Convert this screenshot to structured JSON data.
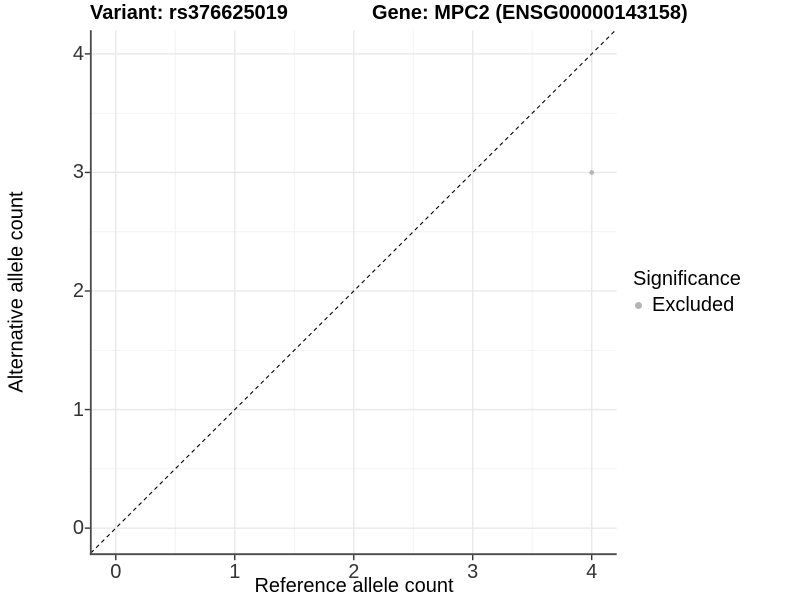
{
  "chart_data": {
    "type": "scatter",
    "title_variant": "Variant: rs376625019",
    "title_gene": "Gene: MPC2 (ENSG00000143158)",
    "xlabel": "Reference allele count",
    "ylabel": "Alternative allele count",
    "xlim": [
      -0.21,
      4.21
    ],
    "ylim": [
      -0.22,
      4.2
    ],
    "xticks": [
      0,
      1,
      2,
      3,
      4
    ],
    "yticks": [
      0,
      1,
      2,
      3,
      4
    ],
    "points": [
      {
        "x": 4,
        "y": 3,
        "significance": "Excluded",
        "color": "#b4b4b4",
        "radius": 2.3
      }
    ],
    "identity_line": {
      "style": "dashed",
      "color": "#000000",
      "x1": -0.21,
      "y1": -0.21,
      "x2": 4.21,
      "y2": 4.21
    },
    "legend": {
      "title": "Significance",
      "position": "right",
      "entries": [
        {
          "label": "Excluded",
          "color": "#b4b4b4"
        }
      ]
    },
    "grid": {
      "major_color": "#e7e7e7",
      "minor_color": "#f1f1f1",
      "major_on": true,
      "minor_on": true
    },
    "axis_color": "#4a4a4a",
    "tick_color": "#333333"
  }
}
